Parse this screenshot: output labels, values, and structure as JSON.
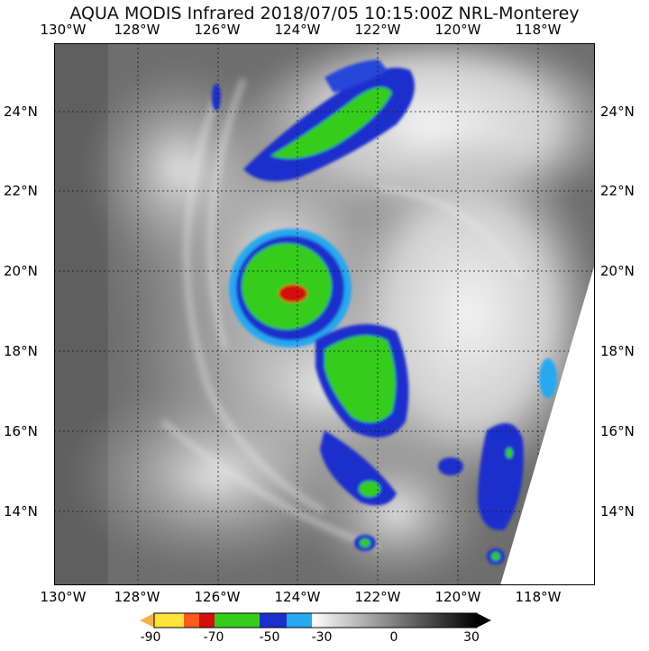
{
  "title": "AQUA MODIS Infrared 2018/07/05 10:15:00Z NRL-Monterey",
  "map": {
    "lon_labels": [
      "130°W",
      "128°W",
      "126°W",
      "124°W",
      "122°W",
      "120°W",
      "118°W"
    ],
    "lat_labels": [
      "24°N",
      "22°N",
      "20°N",
      "18°N",
      "16°N",
      "14°N"
    ],
    "lon_range": [
      -130,
      -116.6
    ],
    "lat_range": [
      12.2,
      25.6
    ],
    "gridlines": true
  },
  "colorbar": {
    "ticks": [
      "-90",
      "-70",
      "-50",
      "-30",
      "0",
      "30"
    ],
    "range": [
      -95,
      30
    ],
    "segments": [
      {
        "from": -95,
        "to": -90,
        "color": "#f5b24a"
      },
      {
        "from": -90,
        "to": -80,
        "color": "#ffe23a"
      },
      {
        "from": -80,
        "to": -70,
        "color": "#ff5a1a"
      },
      {
        "from": -70,
        "to": -65,
        "color": "#d40d0d"
      },
      {
        "from": -65,
        "to": -50,
        "color": "#36cc1b"
      },
      {
        "from": -50,
        "to": -40,
        "color": "#1b2fcc"
      },
      {
        "from": -40,
        "to": -30,
        "color": "#27a8ef"
      },
      {
        "from": -30,
        "to": 30,
        "color": "gradient"
      }
    ]
  },
  "colors": {
    "cold_top": "#d40d0d",
    "deep_convection": "#36cc1b",
    "cloud_blue": "#1b2fcc",
    "cloud_cyan": "#27a8ef",
    "ocean_gray": "#6e6e6e"
  }
}
